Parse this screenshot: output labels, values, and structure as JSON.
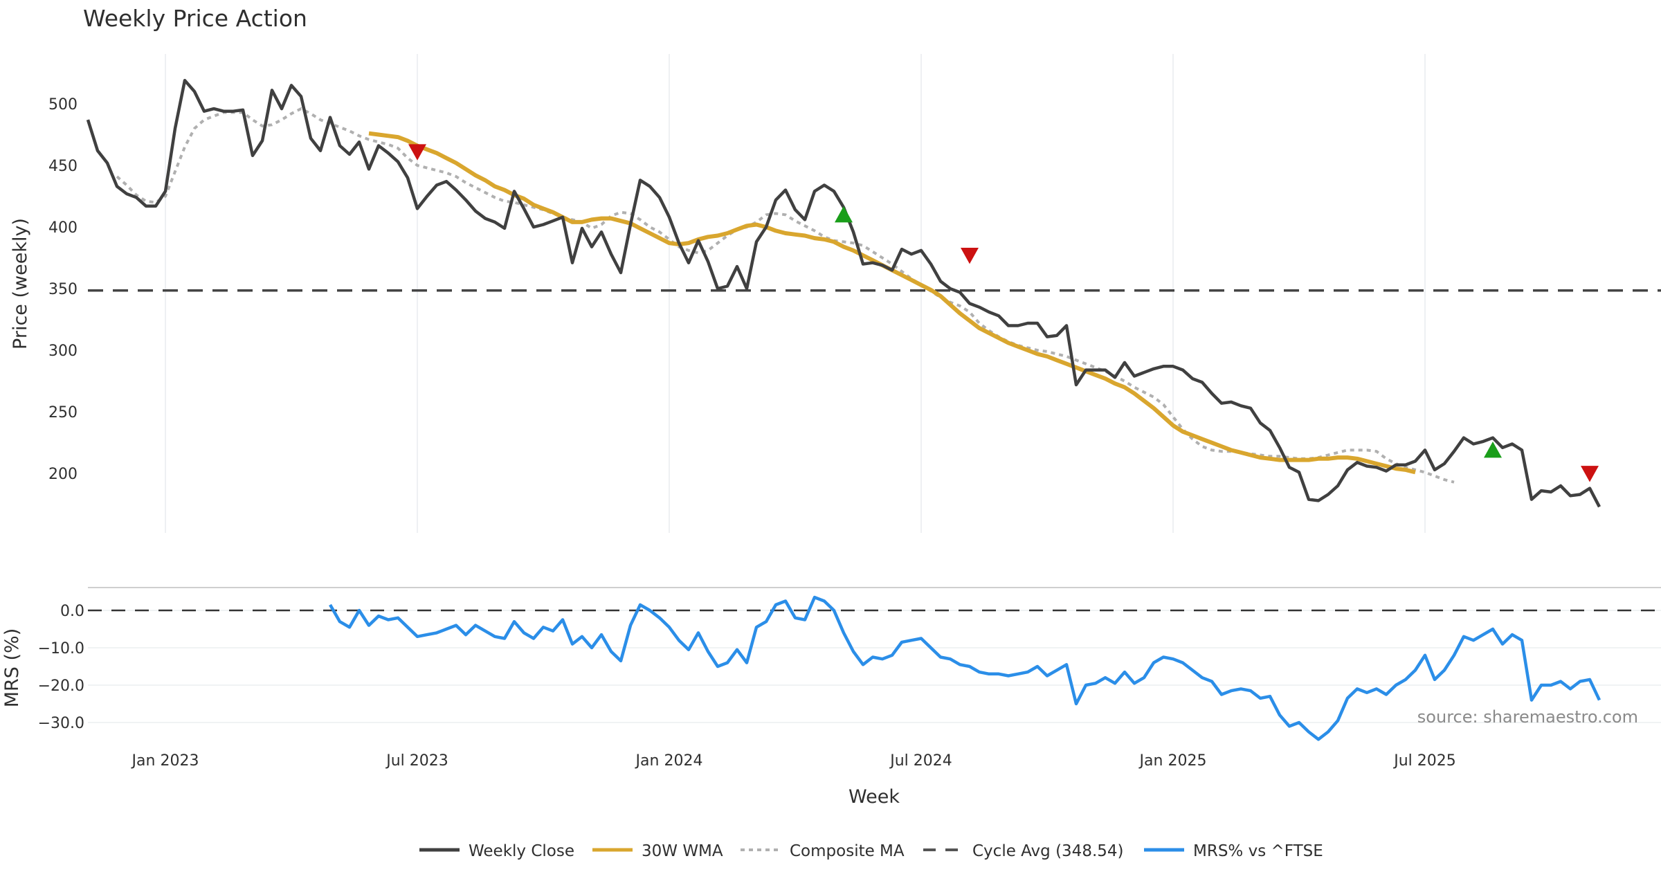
{
  "chart_data": [
    {
      "type": "line",
      "title": "Weekly Price Action",
      "xlabel": "",
      "ylabel": "Price (weekly)",
      "ylim": [
        155,
        540
      ],
      "yticks": [
        "500",
        "450",
        "400",
        "350",
        "300",
        "250",
        "200"
      ],
      "ytick_values": [
        500,
        450,
        400,
        350,
        300,
        250,
        200
      ],
      "grid": "vertical",
      "x_start_week_offset": -8,
      "series": [
        {
          "name": "Weekly Close",
          "color": "#404040",
          "start": 0,
          "values": [
            487,
            462,
            452,
            433,
            427,
            424,
            417,
            417,
            429,
            480,
            519,
            510,
            494,
            496,
            494,
            494,
            495,
            458,
            470,
            511,
            496,
            515,
            506,
            472,
            462,
            489,
            466,
            459,
            469,
            447,
            466,
            460,
            453,
            440,
            415,
            425,
            434,
            437,
            430,
            422,
            413,
            407,
            404,
            399,
            429,
            415,
            400,
            402,
            405,
            408,
            371,
            399,
            384,
            396,
            378,
            363,
            402,
            438,
            433,
            424,
            408,
            387,
            371,
            389,
            372,
            350,
            352,
            368,
            350,
            388,
            400,
            422,
            430,
            414,
            406,
            429,
            434,
            429,
            416,
            396,
            370,
            371,
            369,
            365,
            382,
            378,
            381,
            370,
            356,
            350,
            347,
            338,
            335,
            331,
            328,
            320,
            320,
            322,
            322,
            311,
            312,
            320,
            272,
            284,
            284,
            284,
            278,
            290,
            279,
            282,
            285,
            287,
            287,
            284,
            277,
            274,
            265,
            257,
            258,
            255,
            253,
            241,
            235,
            221,
            205,
            201,
            179,
            178,
            183,
            190,
            203,
            209,
            206,
            205,
            202,
            207,
            207,
            210,
            219,
            203,
            208,
            218,
            229,
            224,
            226,
            229,
            221,
            224,
            219,
            179,
            186,
            185,
            190,
            182,
            183,
            188,
            173
          ]
        },
        {
          "name": "30W WMA",
          "color": "#d9a62e",
          "start": 29,
          "values": [
            476,
            475,
            474,
            473,
            470,
            466,
            463,
            460,
            456,
            452,
            447,
            442,
            438,
            433,
            430,
            426,
            423,
            418,
            415,
            412,
            408,
            404,
            404,
            406,
            407,
            407,
            405,
            403,
            399,
            395,
            391,
            387,
            386,
            387,
            390,
            392,
            393,
            395,
            398,
            401,
            402,
            400,
            397,
            395,
            394,
            393,
            391,
            390,
            388,
            384,
            381,
            377,
            373,
            369,
            365,
            361,
            357,
            353,
            349,
            344,
            337,
            330,
            324,
            318,
            314,
            310,
            306,
            303,
            300,
            297,
            295,
            292,
            289,
            286,
            283,
            280,
            277,
            273,
            270,
            265,
            259,
            253,
            246,
            239,
            234,
            231,
            228,
            225,
            222,
            219,
            217,
            215,
            213,
            212,
            211,
            211,
            211,
            211,
            212,
            212,
            213,
            213,
            212,
            210,
            208,
            206,
            204,
            203,
            201
          ]
        },
        {
          "name": "Composite MA",
          "color": "#b0b0b0",
          "start": 3,
          "values": [
            441,
            434,
            426,
            421,
            420,
            425,
            445,
            465,
            480,
            487,
            490,
            493,
            493,
            493,
            487,
            482,
            483,
            487,
            492,
            496,
            492,
            487,
            484,
            481,
            478,
            474,
            471,
            469,
            467,
            464,
            456,
            450,
            448,
            446,
            444,
            441,
            436,
            432,
            428,
            424,
            421,
            420,
            418,
            416,
            414,
            411,
            408,
            406,
            404,
            399,
            402,
            409,
            412,
            411,
            406,
            400,
            396,
            390,
            384,
            381,
            379,
            381,
            387,
            393,
            398,
            400,
            404,
            410,
            411,
            410,
            405,
            401,
            397,
            392,
            389,
            388,
            387,
            385,
            380,
            375,
            370,
            364,
            358,
            353,
            348,
            343,
            339,
            336,
            331,
            322,
            316,
            311,
            307,
            304,
            302,
            300,
            299,
            297,
            295,
            292,
            289,
            286,
            283,
            279,
            275,
            270,
            266,
            262,
            256,
            246,
            236,
            228,
            222,
            219,
            218,
            218,
            217,
            216,
            215,
            214,
            214,
            213,
            212,
            212,
            213,
            215,
            217,
            219,
            219,
            219,
            218,
            212,
            208,
            205,
            203,
            201,
            198,
            195,
            193
          ]
        }
      ],
      "reference_line": {
        "name": "Cycle Avg (348.54)",
        "value": 348.54,
        "color": "#444444"
      },
      "markers": [
        {
          "type": "sell",
          "week_index": 34,
          "value": 461,
          "color": "#cc1111"
        },
        {
          "type": "buy",
          "week_index": 78,
          "value": 410,
          "color": "#1a9e1a"
        },
        {
          "type": "sell",
          "week_index": 91,
          "value": 377,
          "color": "#cc1111"
        },
        {
          "type": "buy",
          "week_index": 145,
          "value": 219,
          "color": "#1a9e1a"
        },
        {
          "type": "sell",
          "week_index": 155,
          "value": 200,
          "color": "#cc1111"
        }
      ]
    },
    {
      "type": "line",
      "title": "",
      "xlabel": "Week",
      "ylabel": "MRS (%)",
      "ylim": [
        -36,
        6
      ],
      "yticks": [
        "0.0",
        "−10.0",
        "−20.0",
        "−30.0"
      ],
      "ytick_values": [
        0,
        -10,
        -20,
        -30
      ],
      "xticks": [
        "Jan 2023",
        "Jul 2023",
        "Jan 2024",
        "Jul 2024",
        "Jan 2025",
        "Jul 2025"
      ],
      "xtick_week_index": [
        8,
        34,
        60,
        86,
        112,
        138
      ],
      "series": [
        {
          "name": "MRS% vs ^FTSE",
          "color": "#2b8ee8",
          "start": 25,
          "values": [
            1.5,
            -3,
            -4.5,
            0,
            -4,
            -1.5,
            -2.5,
            -2,
            -4.5,
            -7,
            -6.5,
            -6,
            -5,
            -4,
            -6.5,
            -4,
            -5.5,
            -7,
            -7.5,
            -3,
            -6,
            -7.5,
            -4.5,
            -5.5,
            -2.5,
            -9,
            -7,
            -10,
            -6.5,
            -11,
            -13.5,
            -4,
            1.5,
            0,
            -2,
            -4.5,
            -8,
            -10.5,
            -6,
            -11,
            -15,
            -14,
            -10.5,
            -14,
            -4.5,
            -3,
            1.5,
            2.5,
            -2,
            -2.5,
            3.5,
            2.5,
            0,
            -6,
            -11,
            -14.5,
            -12.5,
            -13,
            -12,
            -8.5,
            -8,
            -7.5,
            -10,
            -12.5,
            -13,
            -14.5,
            -15,
            -16.5,
            -17,
            -17,
            -17.5,
            -17,
            -16.5,
            -15,
            -17.5,
            -16,
            -14.5,
            -25,
            -20,
            -19.5,
            -18,
            -19.5,
            -16.5,
            -19.5,
            -18,
            -14,
            -12.5,
            -13,
            -14,
            -16,
            -18,
            -19,
            -22.5,
            -21.5,
            -21,
            -21.5,
            -23.5,
            -23,
            -28,
            -31,
            -30,
            -32.5,
            -34.5,
            -32.5,
            -29.5,
            -23.5,
            -21,
            -22,
            -21,
            -22.5,
            -20,
            -18.5,
            -16,
            -12,
            -18.5,
            -16,
            -12,
            -7,
            -8,
            -6.5,
            -5,
            -9,
            -6.5,
            -8,
            -24,
            -20,
            -20,
            -19,
            -21,
            -19,
            -18.5,
            -24
          ]
        }
      ],
      "reference_line": {
        "value": 0,
        "color": "#333333"
      },
      "annotation": "source: sharemaestro.com"
    }
  ],
  "legend": {
    "placement": "bottom-center",
    "items": [
      {
        "label": "Weekly Close",
        "color": "#404040",
        "style": "solid"
      },
      {
        "label": "30W WMA",
        "color": "#d9a62e",
        "style": "solid"
      },
      {
        "label": "Composite MA",
        "color": "#b0b0b0",
        "style": "dotted"
      },
      {
        "label": "Cycle Avg (348.54)",
        "color": "#555555",
        "style": "dashed"
      },
      {
        "label": "MRS% vs ^FTSE",
        "color": "#2b8ee8",
        "style": "solid"
      }
    ]
  }
}
